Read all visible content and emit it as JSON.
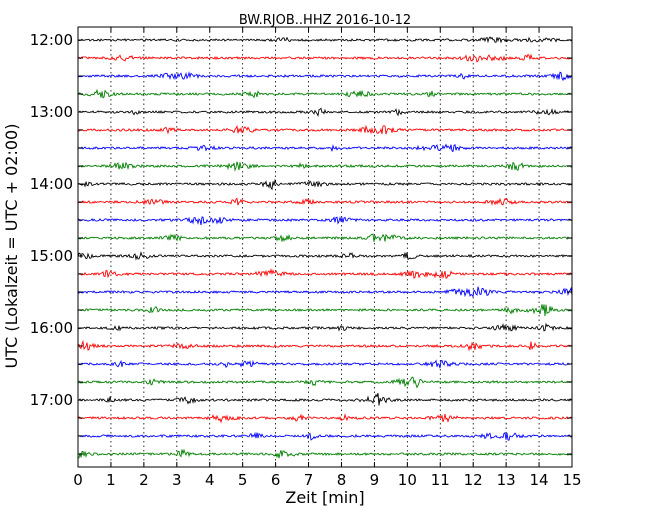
{
  "chart_data": {
    "type": "line",
    "title": "BW.RJOB..HHZ 2016-10-12",
    "xlabel": "Zeit  [min]",
    "ylabel": "UTC (Lokalzeit = UTC + 02:00)",
    "xlim": [
      0,
      15
    ],
    "x_ticks": [
      "0",
      "1",
      "2",
      "3",
      "4",
      "5",
      "6",
      "7",
      "8",
      "9",
      "10",
      "11",
      "12",
      "13",
      "14",
      "15"
    ],
    "y_tick_labels": [
      "12:00",
      "13:00",
      "14:00",
      "15:00",
      "16:00",
      "17:00"
    ],
    "grid": "vertical dotted",
    "trace_colors": [
      "#000000",
      "#ff0000",
      "#0000ff",
      "#008000"
    ],
    "traces": [
      {
        "start_utc": "12:00",
        "color": "#000000"
      },
      {
        "start_utc": "12:15",
        "color": "#ff0000"
      },
      {
        "start_utc": "12:30",
        "color": "#0000ff"
      },
      {
        "start_utc": "12:45",
        "color": "#008000"
      },
      {
        "start_utc": "13:00",
        "color": "#000000"
      },
      {
        "start_utc": "13:15",
        "color": "#ff0000"
      },
      {
        "start_utc": "13:30",
        "color": "#0000ff"
      },
      {
        "start_utc": "13:45",
        "color": "#008000"
      },
      {
        "start_utc": "14:00",
        "color": "#000000"
      },
      {
        "start_utc": "14:15",
        "color": "#ff0000"
      },
      {
        "start_utc": "14:30",
        "color": "#0000ff"
      },
      {
        "start_utc": "14:45",
        "color": "#008000"
      },
      {
        "start_utc": "15:00",
        "color": "#000000"
      },
      {
        "start_utc": "15:15",
        "color": "#ff0000"
      },
      {
        "start_utc": "15:30",
        "color": "#0000ff"
      },
      {
        "start_utc": "15:45",
        "color": "#008000"
      },
      {
        "start_utc": "16:00",
        "color": "#000000"
      },
      {
        "start_utc": "16:15",
        "color": "#ff0000"
      },
      {
        "start_utc": "16:30",
        "color": "#0000ff"
      },
      {
        "start_utc": "16:45",
        "color": "#008000"
      },
      {
        "start_utc": "17:00",
        "color": "#000000"
      },
      {
        "start_utc": "17:15",
        "color": "#ff0000"
      },
      {
        "start_utc": "17:30",
        "color": "#0000ff"
      },
      {
        "start_utc": "17:45",
        "color": "#008000"
      }
    ]
  }
}
